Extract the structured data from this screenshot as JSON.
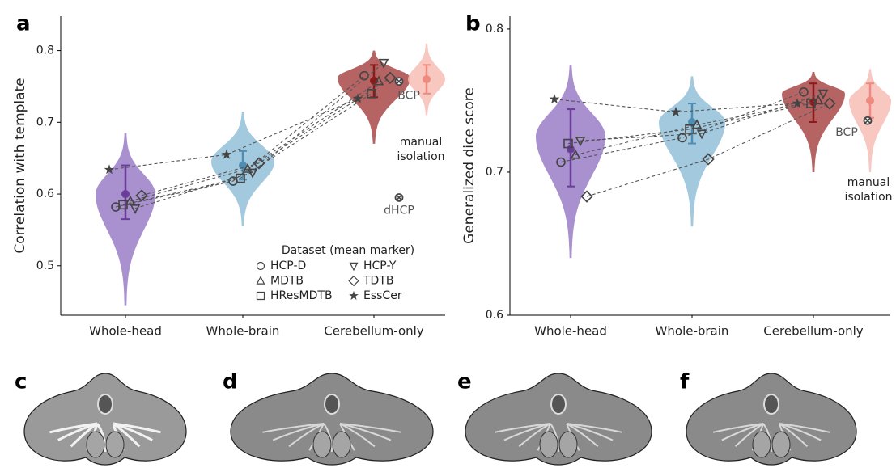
{
  "chart_data": [
    {
      "type": "violin",
      "panel": "a",
      "ylabel": "Correlation with template",
      "categories": [
        "Whole-head",
        "Whole-brain",
        "Cerebellum-only"
      ],
      "ylim": [
        0.431,
        0.848
      ],
      "yticks": [
        0.5,
        0.6,
        0.7,
        0.8
      ],
      "violins": [
        {
          "color": "#9a7cc6",
          "dark": "#6a3d9a",
          "lo": 0.445,
          "hi": 0.685,
          "peak": 0.6,
          "mean": 0.6,
          "err_lo": 0.565,
          "err_hi": 0.64
        },
        {
          "color": "#93bfd8",
          "dark": "#4f8db2",
          "lo": 0.555,
          "hi": 0.715,
          "peak": 0.645,
          "mean": 0.64,
          "err_lo": 0.62,
          "err_hi": 0.66
        },
        {
          "color": "#a84848",
          "dark": "#8b1a1a",
          "lo": 0.67,
          "hi": 0.8,
          "peak": 0.762,
          "mean": 0.758,
          "err_lo": 0.735,
          "err_hi": 0.78
        },
        {
          "color": "#f6bdb5",
          "dark": "#ef8a7e",
          "lo": 0.71,
          "hi": 0.81,
          "peak": 0.76,
          "mean": 0.76,
          "err_lo": 0.74,
          "err_hi": 0.78
        }
      ],
      "series": [
        {
          "name": "HCP-D",
          "marker": "circle",
          "values": [
            0.582,
            0.618,
            0.765
          ]
        },
        {
          "name": "MDTB",
          "marker": "triangle-up",
          "values": [
            0.59,
            0.635,
            0.757
          ]
        },
        {
          "name": "HResMDTB",
          "marker": "square",
          "values": [
            0.585,
            0.622,
            0.74
          ]
        },
        {
          "name": "HCP-Y",
          "marker": "triangle-down",
          "values": [
            0.58,
            0.63,
            0.783
          ]
        },
        {
          "name": "TDTB",
          "marker": "diamond",
          "values": [
            0.598,
            0.643,
            0.762
          ]
        },
        {
          "name": "EssCer",
          "marker": "star",
          "values": [
            0.634,
            0.655,
            0.733
          ]
        }
      ],
      "references": [
        {
          "name": "BCP",
          "value": 0.757
        },
        {
          "name": "dHCP",
          "value": 0.595
        }
      ],
      "annotation": [
        "manual",
        "isolation"
      ],
      "legend": {
        "show": true,
        "title": "Dataset (mean marker)",
        "position": "lower right"
      }
    },
    {
      "type": "violin",
      "panel": "b",
      "ylabel": "Generalized dice score",
      "categories": [
        "Whole-head",
        "Whole-brain",
        "Cerebellum-only"
      ],
      "ylim": [
        0.6,
        0.809
      ],
      "yticks": [
        0.6,
        0.7,
        0.8
      ],
      "violins": [
        {
          "color": "#9a7cc6",
          "dark": "#6a3d9a",
          "lo": 0.64,
          "hi": 0.775,
          "peak": 0.725,
          "mean": 0.716,
          "err_lo": 0.69,
          "err_hi": 0.744
        },
        {
          "color": "#93bfd8",
          "dark": "#4f8db2",
          "lo": 0.662,
          "hi": 0.767,
          "peak": 0.735,
          "mean": 0.735,
          "err_lo": 0.72,
          "err_hi": 0.748
        },
        {
          "color": "#a84848",
          "dark": "#8b1a1a",
          "lo": 0.7,
          "hi": 0.77,
          "peak": 0.755,
          "mean": 0.749,
          "err_lo": 0.735,
          "err_hi": 0.762
        },
        {
          "color": "#f6bdb5",
          "dark": "#ef8a7e",
          "lo": 0.7,
          "hi": 0.772,
          "peak": 0.75,
          "mean": 0.75,
          "err_lo": 0.738,
          "err_hi": 0.762
        }
      ],
      "series": [
        {
          "name": "HCP-D",
          "marker": "circle",
          "values": [
            0.707,
            0.724,
            0.756
          ]
        },
        {
          "name": "MDTB",
          "marker": "triangle-up",
          "values": [
            0.712,
            0.733,
            0.75
          ]
        },
        {
          "name": "HResMDTB",
          "marker": "square",
          "values": [
            0.72,
            0.73,
            0.748
          ]
        },
        {
          "name": "HCP-Y",
          "marker": "triangle-down",
          "values": [
            0.722,
            0.727,
            0.755
          ]
        },
        {
          "name": "TDTB",
          "marker": "diamond",
          "values": [
            0.683,
            0.709,
            0.748
          ]
        },
        {
          "name": "EssCer",
          "marker": "star",
          "values": [
            0.751,
            0.742,
            0.748
          ]
        }
      ],
      "references": [
        {
          "name": "BCP",
          "value": 0.736
        }
      ],
      "annotation": [
        "manual",
        "isolation"
      ],
      "legend": {
        "show": false
      }
    }
  ],
  "images": [
    {
      "label": "c"
    },
    {
      "label": "d"
    },
    {
      "label": "e"
    },
    {
      "label": "f"
    }
  ]
}
